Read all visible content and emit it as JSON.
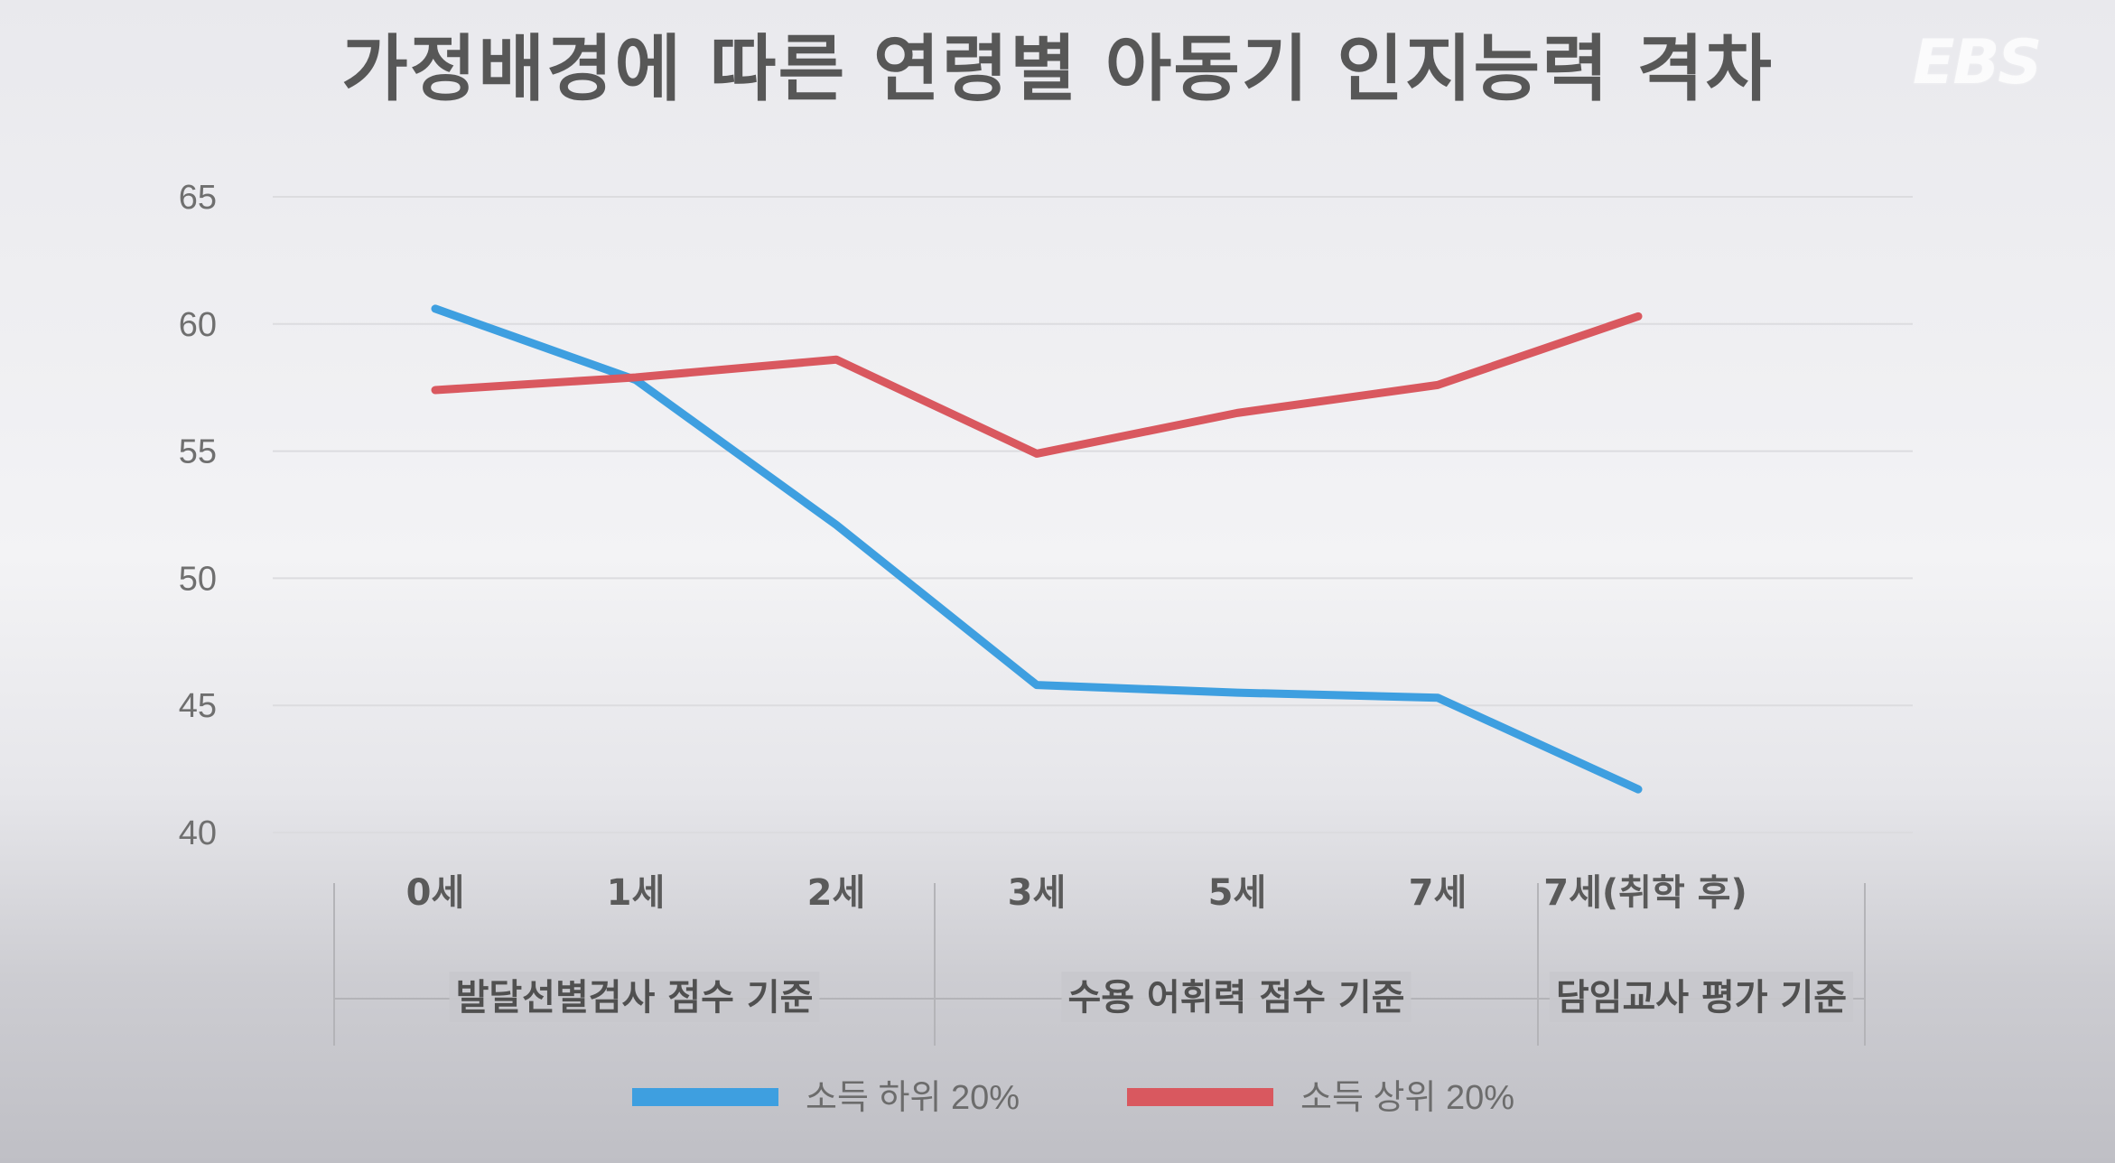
{
  "header": {
    "title": "가정배경에 따른 연령별 아동기 인지능력 격차",
    "logo": "EBS"
  },
  "colors": {
    "low": "#3e9fe0",
    "high": "#d9585f",
    "grid": "#dcdcdf",
    "divider": "#b4b4b8",
    "group_bg": "#c8c8cc"
  },
  "chart_data": {
    "type": "line",
    "title": "가정배경에 따른 연령별 아동기 인지능력 격차",
    "xlabel": "",
    "ylabel": "",
    "categories": [
      "0세",
      "1세",
      "2세",
      "3세",
      "5세",
      "7세",
      "7세(취학 후)"
    ],
    "ylim": [
      40,
      65
    ],
    "yticks": [
      65,
      60,
      55,
      50,
      45,
      40
    ],
    "grid": true,
    "legend_position": "bottom",
    "series": [
      {
        "name": "소득 하위 20%",
        "color": "#3e9fe0",
        "values": [
          60.6,
          57.8,
          52.1,
          45.8,
          45.5,
          45.3,
          41.7
        ]
      },
      {
        "name": "소득 상위 20%",
        "color": "#d9585f",
        "values": [
          57.4,
          57.9,
          58.6,
          54.9,
          56.5,
          57.6,
          60.3
        ]
      }
    ],
    "groups": [
      {
        "label": "발달선별검사 점수 기준",
        "start": 0,
        "end": 2
      },
      {
        "label": "수용 어휘력 점수 기준",
        "start": 3,
        "end": 5
      },
      {
        "label": "담임교사 평가 기준",
        "start": 6,
        "end": 6
      }
    ]
  }
}
